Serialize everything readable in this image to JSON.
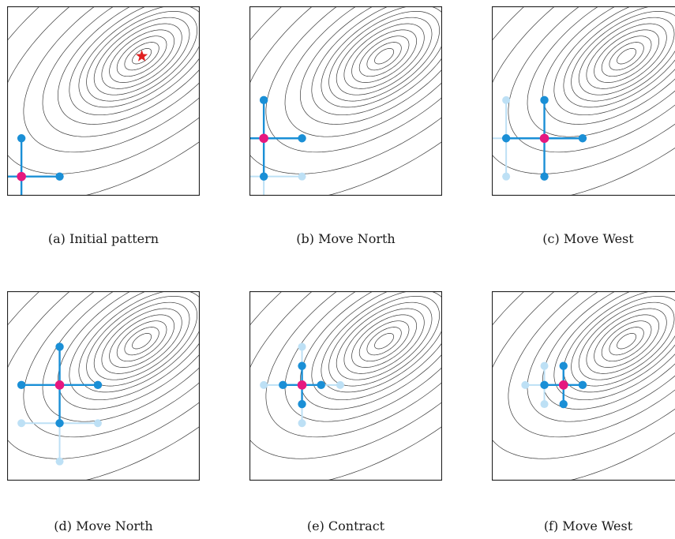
{
  "colors": {
    "contour": "#3a3a3a",
    "frame": "#222222",
    "active": "#1a8fd6",
    "previous": "#bde0f5",
    "center": "#e6187f",
    "optimum": "#e02020"
  },
  "panels": [
    {
      "caption": "(a) Initial pattern",
      "center": [
        -3.3,
        -2.3
      ],
      "step": 2,
      "show_optimum": true,
      "previous": null
    },
    {
      "caption": "(b) Move North",
      "center": [
        -3.3,
        -0.3
      ],
      "step": 2,
      "show_optimum": false,
      "previous": {
        "center": [
          -3.3,
          -2.3
        ],
        "step": 2
      }
    },
    {
      "caption": "(c) Move West",
      "center": [
        -1.3,
        -0.3
      ],
      "step": 2,
      "show_optimum": false,
      "previous": {
        "center": [
          -3.3,
          -0.3
        ],
        "step": 2
      }
    },
    {
      "caption": "(d) Move North",
      "center": [
        -1.3,
        1.7
      ],
      "step": 2,
      "show_optimum": false,
      "previous": {
        "center": [
          -1.3,
          -0.3
        ],
        "step": 2
      }
    },
    {
      "caption": "(e) Contract",
      "center": [
        -1.3,
        1.7
      ],
      "step": 1,
      "show_optimum": false,
      "previous": {
        "center": [
          -1.3,
          1.7
        ],
        "step": 2
      }
    },
    {
      "caption": "(f) Move West",
      "center": [
        -0.3,
        1.7
      ],
      "step": 1,
      "show_optimum": false,
      "previous": {
        "center": [
          -1.3,
          1.7
        ],
        "step": 1
      }
    }
  ]
}
